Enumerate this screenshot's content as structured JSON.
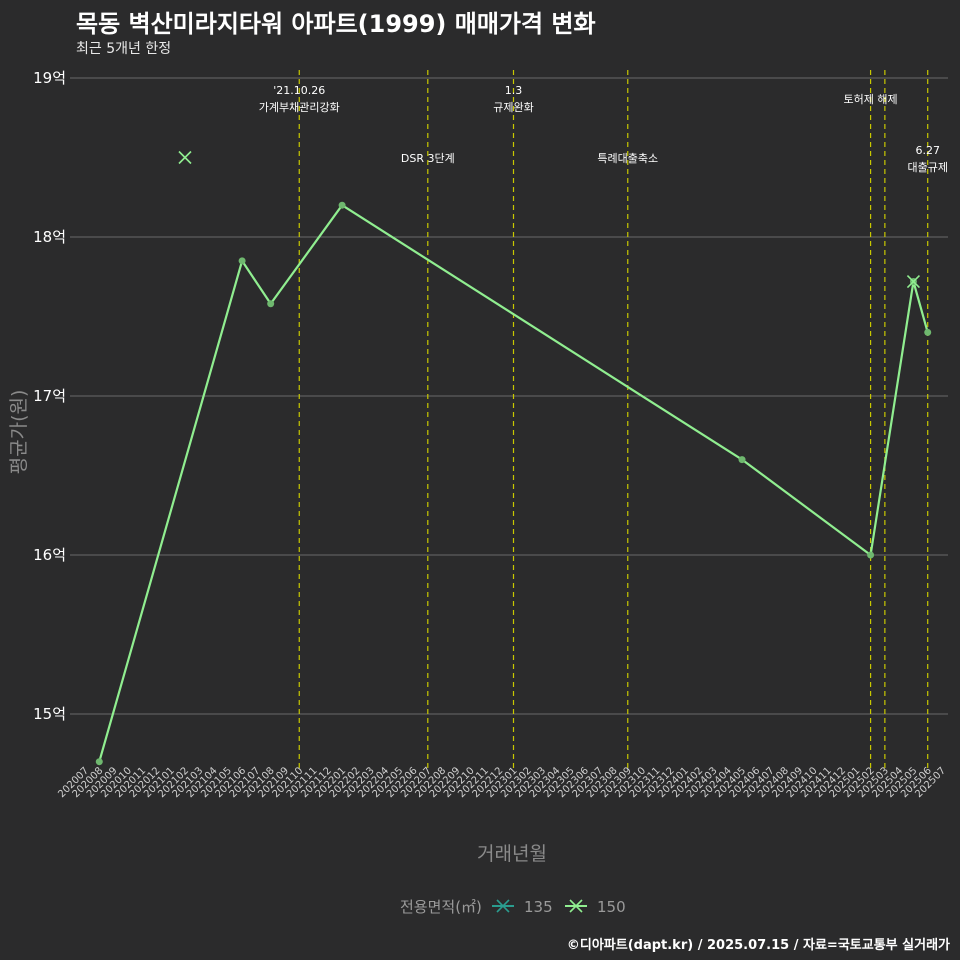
{
  "title": "목동 벽산미라지타워 아파트(1999) 매매가격 변화",
  "subtitle": "최근 5개년 한정",
  "caption": "©디아파트(dapt.kr) / 2025.07.15 / 자료=국토교통부 실거래가",
  "colors": {
    "background": "#2b2b2c",
    "line150": "#90ee90",
    "line135": "#2a9d8f",
    "vline": "#c8c800",
    "grid": "#6a6a6a"
  },
  "chart_data": {
    "type": "line",
    "title": "목동 벽산미라지타워 아파트(1999) 매매가격 변화",
    "xlabel": "거래년월",
    "ylabel": "평균가(원)",
    "ylim": [
      14.55,
      19.1
    ],
    "yticks": [
      15,
      16,
      17,
      18,
      19
    ],
    "ytick_labels": [
      "15억",
      "16억",
      "17억",
      "18억",
      "19억"
    ],
    "categories": [
      "202007",
      "202008",
      "202009",
      "202010",
      "202011",
      "202012",
      "202101",
      "202102",
      "202103",
      "202104",
      "202105",
      "202106",
      "202107",
      "202108",
      "202109",
      "202110",
      "202111",
      "202112",
      "202201",
      "202202",
      "202203",
      "202204",
      "202205",
      "202206",
      "202207",
      "202208",
      "202209",
      "202210",
      "202211",
      "202212",
      "202301",
      "202302",
      "202303",
      "202304",
      "202305",
      "202306",
      "202307",
      "202308",
      "202309",
      "202310",
      "202311",
      "202312",
      "202401",
      "202402",
      "202403",
      "202404",
      "202405",
      "202406",
      "202407",
      "202408",
      "202409",
      "202410",
      "202411",
      "202412",
      "202501",
      "202502",
      "202503",
      "202504",
      "202505",
      "202506",
      "202507"
    ],
    "legend_title": "전용면적(㎡)",
    "series": [
      {
        "name": "135",
        "kind": "x-marker",
        "points": []
      },
      {
        "name": "150",
        "kind": "line",
        "points": [
          {
            "x": "202008",
            "y": 14.7
          },
          {
            "x": "202106",
            "y": 17.85
          },
          {
            "x": "202108",
            "y": 17.58
          },
          {
            "x": "202201",
            "y": 18.2
          },
          {
            "x": "202405",
            "y": 16.6
          },
          {
            "x": "202502",
            "y": 16.0
          },
          {
            "x": "202505",
            "y": 17.72
          },
          {
            "x": "202506",
            "y": 17.4
          }
        ]
      },
      {
        "name": "150",
        "kind": "x-marker",
        "points": [
          {
            "x": "202102",
            "y": 18.5
          },
          {
            "x": "202505",
            "y": 17.72
          }
        ]
      }
    ],
    "events": [
      {
        "x": "202110",
        "lines": [
          "'21.10.26",
          "가계부채관리강화"
        ],
        "row": "top"
      },
      {
        "x": "202207",
        "lines": [
          "DSR 3단계"
        ],
        "row": "mid"
      },
      {
        "x": "202301",
        "lines": [
          "1.3",
          "규제완화"
        ],
        "row": "top"
      },
      {
        "x": "202309",
        "lines": [
          "특례대출축소"
        ],
        "row": "mid"
      },
      {
        "x": "202502",
        "lines": [
          "토허제 해제"
        ],
        "row": "topsingle"
      },
      {
        "x": "202503",
        "lines": [],
        "row": "none"
      },
      {
        "x": "202506",
        "lines": [
          "6.27",
          "대출규제"
        ],
        "row": "low"
      }
    ]
  }
}
